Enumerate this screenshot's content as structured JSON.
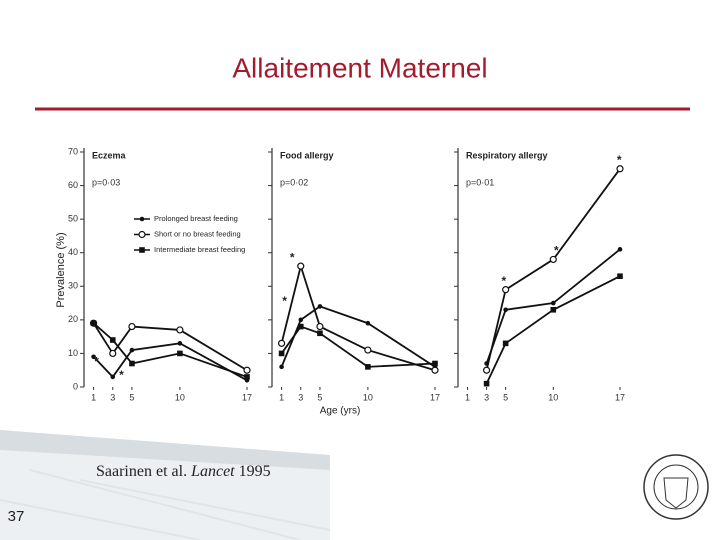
{
  "title": "Allaitement Maternel",
  "page_number": "37",
  "citation": [
    "Saarinen et al. ",
    "Lancet",
    " 1995"
  ],
  "y_axis_label": "Prevalence (%)",
  "x_axis_label": "Age (yrs)",
  "chart_data": [
    {
      "type": "line",
      "title": "Eczema",
      "subtitle": "p=0·03",
      "x": [
        1,
        3,
        5,
        10,
        17
      ],
      "xlim": [
        0,
        17
      ],
      "xticks": [
        1,
        3,
        5,
        10,
        17
      ],
      "ylim": [
        0,
        70
      ],
      "yticks": [
        0,
        10,
        20,
        30,
        40,
        50,
        60,
        70
      ],
      "show_ytick_labels": true,
      "legend": true,
      "series": [
        {
          "name": "Prolonged breast feeding",
          "marker": "dot",
          "color": "#111111",
          "values": [
            9,
            3,
            11,
            13,
            2
          ]
        },
        {
          "name": "Short or no breast feeding",
          "marker": "open",
          "color": "#111111",
          "values": [
            19,
            10,
            18,
            17,
            5
          ]
        },
        {
          "name": "Intermediate breast feeding",
          "marker": "square",
          "color": "#111111",
          "values": [
            19,
            14,
            7,
            10,
            3
          ]
        }
      ],
      "annotations": [
        {
          "text": "*",
          "x": 1,
          "y": 5
        },
        {
          "text": "*",
          "x": 3.6,
          "y": 1
        }
      ]
    },
    {
      "type": "line",
      "title": "Food allergy",
      "subtitle": "p=0·02",
      "x": [
        1,
        3,
        5,
        10,
        17
      ],
      "xlim": [
        0,
        17
      ],
      "xticks": [
        1,
        3,
        5,
        10,
        17
      ],
      "ylim": [
        0,
        70
      ],
      "yticks": [
        0,
        10,
        20,
        30,
        40,
        50,
        60,
        70
      ],
      "show_ytick_labels": false,
      "legend": false,
      "series": [
        {
          "marker": "dot",
          "color": "#111111",
          "values": [
            6,
            20,
            24,
            19,
            6
          ]
        },
        {
          "marker": "open",
          "color": "#111111",
          "values": [
            13,
            36,
            18,
            11,
            5
          ]
        },
        {
          "marker": "square",
          "color": "#111111",
          "values": [
            10,
            18,
            16,
            6,
            7
          ]
        }
      ],
      "annotations": [
        {
          "text": "*",
          "x": 1.8,
          "y": 36
        },
        {
          "text": "*",
          "x": 1,
          "y": 23
        }
      ]
    },
    {
      "type": "line",
      "title": "Respiratory allergy",
      "subtitle": "p=0·01",
      "x": [
        1,
        3,
        5,
        10,
        17
      ],
      "xlim": [
        0,
        17
      ],
      "xticks": [
        1,
        3,
        5,
        10,
        17
      ],
      "ylim": [
        0,
        70
      ],
      "yticks": [
        0,
        10,
        20,
        30,
        40,
        50,
        60,
        70
      ],
      "show_ytick_labels": false,
      "legend": false,
      "series": [
        {
          "marker": "dot",
          "color": "#111111",
          "values": [
            null,
            7,
            23,
            25,
            41
          ]
        },
        {
          "marker": "open",
          "color": "#111111",
          "values": [
            null,
            5,
            29,
            38,
            65
          ]
        },
        {
          "marker": "square",
          "color": "#111111",
          "values": [
            null,
            1,
            13,
            23,
            33
          ]
        }
      ],
      "annotations": [
        {
          "text": "*",
          "x": 16.6,
          "y": 65
        },
        {
          "text": "*",
          "x": 10,
          "y": 38
        },
        {
          "text": "*",
          "x": 4.5,
          "y": 29
        }
      ]
    }
  ]
}
